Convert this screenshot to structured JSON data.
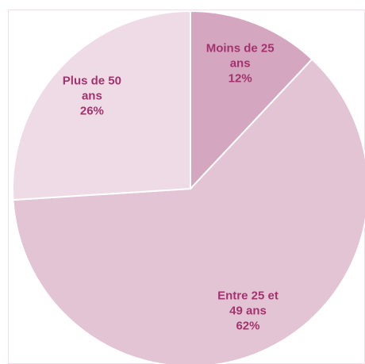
{
  "chart_data": {
    "type": "pie",
    "categories": [
      "Moins de 25 ans",
      "Entre 25 et 49 ans",
      "Plus de 50 ans"
    ],
    "values": [
      12,
      62,
      26
    ],
    "value_labels": [
      "12%",
      "62%",
      "26%"
    ],
    "colors": [
      "#d4a6c0",
      "#e3c4d4",
      "#efdbe6"
    ]
  }
}
